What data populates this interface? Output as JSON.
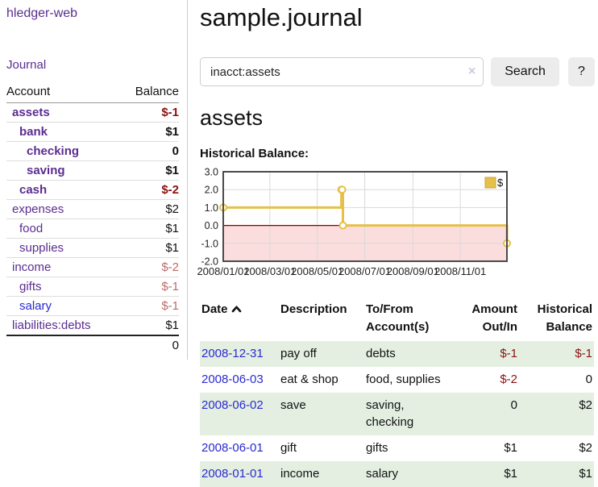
{
  "colors": {
    "link_purple": "#5b2d90",
    "link_blue": "#2a2ad0",
    "negative_strong": "#8a1212",
    "negative_soft": "#bd6b6b",
    "row_stripe_green": "#e4efe2",
    "chart_line": "#e6c04a",
    "chart_negative_fill": "#fbdddd",
    "chart_zero_line": "#8b0000",
    "chart_grid": "#d9d9d9",
    "chart_border": "#4a4a4a"
  },
  "sidebar": {
    "brand": "hledger-web",
    "journal_link": "Journal",
    "accounts_table": {
      "headers": {
        "account": "Account",
        "balance": "Balance"
      },
      "rows": [
        {
          "name": "assets",
          "depth": 1,
          "bold": true,
          "balance": "$-1",
          "balance_style": "neg-strong",
          "link_style": "purple"
        },
        {
          "name": "bank",
          "depth": 2,
          "bold": true,
          "balance": "$1",
          "balance_style": "pos",
          "link_style": "purple"
        },
        {
          "name": "checking",
          "depth": 3,
          "bold": true,
          "balance": "0",
          "balance_style": "pos",
          "link_style": "purple"
        },
        {
          "name": "saving",
          "depth": 3,
          "bold": true,
          "balance": "$1",
          "balance_style": "pos",
          "link_style": "purple"
        },
        {
          "name": "cash",
          "depth": 2,
          "bold": true,
          "balance": "$-2",
          "balance_style": "neg-strong",
          "link_style": "purple"
        },
        {
          "name": "expenses",
          "depth": 1,
          "bold": false,
          "balance": "$2",
          "balance_style": "pos",
          "link_style": "purple"
        },
        {
          "name": "food",
          "depth": 2,
          "bold": false,
          "balance": "$1",
          "balance_style": "pos",
          "link_style": "purple"
        },
        {
          "name": "supplies",
          "depth": 2,
          "bold": false,
          "balance": "$1",
          "balance_style": "pos",
          "link_style": "purple"
        },
        {
          "name": "income",
          "depth": 1,
          "bold": false,
          "balance": "$-2",
          "balance_style": "neg-soft",
          "link_style": "purple"
        },
        {
          "name": "gifts",
          "depth": 2,
          "bold": false,
          "balance": "$-1",
          "balance_style": "neg-soft",
          "link_style": "purple"
        },
        {
          "name": "salary",
          "depth": 2,
          "bold": false,
          "balance": "$-1",
          "balance_style": "neg-soft",
          "link_style": "blue"
        },
        {
          "name": "liabilities:debts",
          "depth": 1,
          "bold": false,
          "balance": "$1",
          "balance_style": "pos",
          "link_style": "purple"
        }
      ],
      "total": "0"
    }
  },
  "main": {
    "title": "sample.journal",
    "search": {
      "value": "inacct:assets",
      "clear_icon": "×",
      "search_button": "Search",
      "help_button": "?"
    },
    "account_heading": "assets",
    "chart_label": "Historical Balance:"
  },
  "chart_data": {
    "type": "line",
    "title": "Historical Balance:",
    "step": true,
    "legend": {
      "label": "$",
      "position": "top-right"
    },
    "ylim": [
      -2,
      3
    ],
    "y_ticks": [
      3.0,
      2.0,
      1.0,
      0.0,
      -1.0,
      -2.0
    ],
    "y_tick_labels": [
      "3.0",
      "2.0",
      "1.0",
      "0.0",
      "-1.0",
      "-2.0"
    ],
    "x_tick_labels": [
      "2008/01/01",
      "2008/03/01",
      "2008/05/01",
      "2008/07/01",
      "2008/09/01",
      "2008/11/01"
    ],
    "x_tick_days": [
      0,
      60,
      121,
      182,
      244,
      305
    ],
    "x_range_days": [
      0,
      365
    ],
    "series": [
      {
        "name": "$",
        "points": [
          {
            "date": "2008-01-01",
            "day": 0,
            "value": 1
          },
          {
            "date": "2008-06-01",
            "day": 152,
            "value": 2
          },
          {
            "date": "2008-06-02",
            "day": 153,
            "value": 2
          },
          {
            "date": "2008-06-03",
            "day": 154,
            "value": 0
          },
          {
            "date": "2008-12-31",
            "day": 365,
            "value": -1
          }
        ]
      }
    ],
    "grid": true,
    "negative_region_shaded": true
  },
  "register": {
    "headers": {
      "date": "Date",
      "description": "Description",
      "accounts": "To/From\nAccount(s)",
      "amount": "Amount\nOut/In",
      "balance": "Historical\nBalance"
    },
    "sort_icon": "chevron-up",
    "rows": [
      {
        "date": "2008-12-31",
        "description": "pay off",
        "accounts": "debts",
        "amount": "$-1",
        "amount_negative": true,
        "balance": "$-1",
        "balance_negative": true
      },
      {
        "date": "2008-06-03",
        "description": "eat & shop",
        "accounts": "food, supplies",
        "amount": "$-2",
        "amount_negative": true,
        "balance": "0",
        "balance_negative": false
      },
      {
        "date": "2008-06-02",
        "description": "save",
        "accounts": "saving, checking",
        "amount": "0",
        "amount_negative": false,
        "balance": "$2",
        "balance_negative": false
      },
      {
        "date": "2008-06-01",
        "description": "gift",
        "accounts": "gifts",
        "amount": "$1",
        "amount_negative": false,
        "balance": "$2",
        "balance_negative": false
      },
      {
        "date": "2008-01-01",
        "description": "income",
        "accounts": "salary",
        "amount": "$1",
        "amount_negative": false,
        "balance": "$1",
        "balance_negative": false
      }
    ]
  }
}
